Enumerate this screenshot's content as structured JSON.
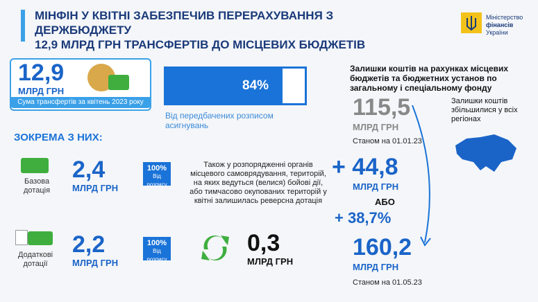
{
  "header": {
    "title_line1": "МІНФІН У КВІТНІ ЗАБЕЗПЕЧИВ ПЕРЕРАХУВАННЯ З ДЕРЖБЮДЖЕТУ",
    "title_line2": "12,9 МЛРД ГРН ТРАНСФЕРТІВ ДО МІСЦЕВИХ БЮДЖЕТІВ",
    "logo_line1": "Міністерство",
    "logo_line2": "фінансів",
    "logo_line3": "України"
  },
  "total": {
    "value": "12,9",
    "unit": "МЛРД ГРН",
    "caption": "Сума трансфертів за квітень 2023 року"
  },
  "progress": {
    "percent_label": "84%",
    "fraction": 0.84,
    "caption_line1": "Від передбачених розписом",
    "caption_line2": "асигнувань"
  },
  "section_heading": "ЗОКРЕМА З НИХ:",
  "items": [
    {
      "label_line1": "Базова",
      "label_line2": "дотація",
      "value": "2,4",
      "unit": "МЛРД ГРН",
      "pct": "100%",
      "pct_sub": "Від розпису"
    },
    {
      "label_line1": "Додаткові",
      "label_line2": "дотації",
      "value": "2,2",
      "unit": "МЛРД ГРН",
      "pct": "100%",
      "pct_sub": "Від розпису"
    }
  ],
  "reverse": {
    "text": "Також у розпорядженні органів місцевого самоврядування, територій, на яких ведуться (велися) бойові дії, або тимчасово окупованих територій у квітні залишилась реверсна дотація",
    "value": "0,3",
    "unit": "МЛРД ГРН"
  },
  "balances": {
    "heading": "Залишки коштів на рахунках місцевих бюджетів та бюджетних установ по загальному і спеціальному фонду",
    "start_value": "115,5",
    "start_unit": "МЛРД ГРН",
    "start_date": "Станом на 01.01.23",
    "increase_value": "+ 44,8",
    "increase_unit": "МЛРД ГРН",
    "or_label": "АБО",
    "increase_pct": "+ 38,7%",
    "end_value": "160,2",
    "end_unit": "МЛРД ГРН",
    "end_date": "Станом на 01.05.23",
    "map_note": "Залишки коштів збільшилися у всіх регіонах"
  },
  "colors": {
    "primary": "#1a64c8",
    "accent": "#3aa0e8",
    "green": "#3fae3f",
    "gray": "#777777"
  }
}
